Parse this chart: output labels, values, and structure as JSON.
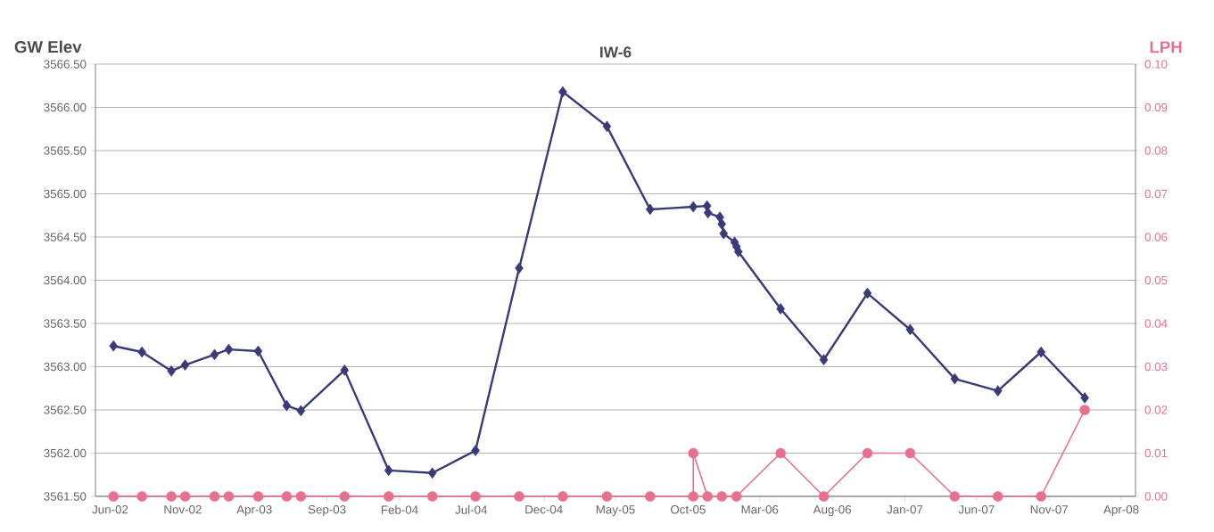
{
  "chart_data": {
    "type": "line",
    "title": "IW-6",
    "ylabel": "GW Elev",
    "y2label": "LPH",
    "xlim": [
      "2002-05-01",
      "2008-05-01"
    ],
    "xticks": [
      {
        "value": "2002-06-01",
        "label": "Jun-02"
      },
      {
        "value": "2002-11-01",
        "label": "Nov-02"
      },
      {
        "value": "2003-04-01",
        "label": "Apr-03"
      },
      {
        "value": "2003-09-01",
        "label": "Sep-03"
      },
      {
        "value": "2004-02-01",
        "label": "Feb-04"
      },
      {
        "value": "2004-07-01",
        "label": "Jul-04"
      },
      {
        "value": "2004-12-01",
        "label": "Dec-04"
      },
      {
        "value": "2005-05-01",
        "label": "May-05"
      },
      {
        "value": "2005-10-01",
        "label": "Oct-05"
      },
      {
        "value": "2006-03-01",
        "label": "Mar-06"
      },
      {
        "value": "2006-08-01",
        "label": "Aug-06"
      },
      {
        "value": "2007-01-01",
        "label": "Jan-07"
      },
      {
        "value": "2007-06-01",
        "label": "Jun-07"
      },
      {
        "value": "2007-11-01",
        "label": "Nov-07"
      },
      {
        "value": "2008-04-01",
        "label": "Apr-08"
      }
    ],
    "ylim": [
      3561.5,
      3566.5
    ],
    "yticks": [
      {
        "value": 3561.5,
        "label": "3561.50"
      },
      {
        "value": 3562.0,
        "label": "3562.00"
      },
      {
        "value": 3562.5,
        "label": "3562.50"
      },
      {
        "value": 3563.0,
        "label": "3563.00"
      },
      {
        "value": 3563.5,
        "label": "3563.50"
      },
      {
        "value": 3564.0,
        "label": "3564.00"
      },
      {
        "value": 3564.5,
        "label": "3564.50"
      },
      {
        "value": 3565.0,
        "label": "3565.00"
      },
      {
        "value": 3565.5,
        "label": "3565.50"
      },
      {
        "value": 3566.0,
        "label": "3566.00"
      },
      {
        "value": 3566.5,
        "label": "3566.50"
      }
    ],
    "y2lim": [
      0,
      0.1
    ],
    "y2ticks": [
      {
        "value": 0,
        "label": "0.00"
      },
      {
        "value": 0.01,
        "label": "0.01"
      },
      {
        "value": 0.02,
        "label": "0.02"
      },
      {
        "value": 0.03,
        "label": "0.03"
      },
      {
        "value": 0.04,
        "label": "0.04"
      },
      {
        "value": 0.05,
        "label": "0.05"
      },
      {
        "value": 0.06,
        "label": "0.06"
      },
      {
        "value": 0.07,
        "label": "0.07"
      },
      {
        "value": 0.08,
        "label": "0.08"
      },
      {
        "value": 0.09,
        "label": "0.09"
      },
      {
        "value": 0.1,
        "label": "0.10"
      }
    ],
    "grid": "y",
    "series": [
      {
        "color": "#3a3a76",
        "marker": "diamond",
        "x": [
          "2002-06-08",
          "2002-08-07",
          "2002-10-08",
          "2002-11-06",
          "2003-01-07",
          "2003-02-06",
          "2003-04-09",
          "2003-06-08",
          "2003-07-08",
          "2003-10-08",
          "2004-01-09",
          "2004-04-10",
          "2004-07-10",
          "2004-10-10",
          "2005-01-10",
          "2005-04-13",
          "2005-07-13",
          "2005-10-12",
          "2005-11-10",
          "2005-11-12",
          "2005-12-07",
          "2005-12-11",
          "2005-12-15",
          "2006-01-07",
          "2006-01-11",
          "2006-01-15",
          "2006-04-14",
          "2006-07-14",
          "2006-10-14",
          "2007-01-12",
          "2007-04-16",
          "2007-07-16",
          "2007-10-15",
          "2008-01-15"
        ],
        "values": [
          3563.24,
          3563.17,
          3562.95,
          3563.02,
          3563.14,
          3563.2,
          3563.18,
          3562.55,
          3562.49,
          3562.96,
          3561.8,
          3561.77,
          3562.03,
          3564.14,
          3566.18,
          3565.78,
          3564.82,
          3564.85,
          3564.86,
          3564.78,
          3564.73,
          3564.65,
          3564.54,
          3564.44,
          3564.39,
          3564.33,
          3563.67,
          3563.08,
          3563.85,
          3563.43,
          3562.86,
          3562.72,
          3563.17,
          3562.64
        ]
      },
      {
        "color": "#e8708f",
        "marker": "circle",
        "axis": "y2",
        "x": [
          "2002-06-08",
          "2002-08-07",
          "2002-10-08",
          "2002-11-06",
          "2003-01-07",
          "2003-02-06",
          "2003-04-09",
          "2003-06-08",
          "2003-07-08",
          "2003-10-08",
          "2004-01-09",
          "2004-04-10",
          "2004-07-10",
          "2004-10-10",
          "2005-01-10",
          "2005-04-13",
          "2005-07-13",
          "2005-10-12",
          "2005-10-12",
          "2005-11-11",
          "2005-12-11",
          "2006-01-11",
          "2006-04-14",
          "2006-07-14",
          "2006-10-14",
          "2007-01-12",
          "2007-04-16",
          "2007-07-16",
          "2007-10-15",
          "2008-01-15"
        ],
        "values": [
          0,
          0,
          0,
          0,
          0,
          0,
          0,
          0,
          0,
          0,
          0,
          0,
          0,
          0,
          0,
          0,
          0,
          0,
          0.01,
          0,
          0,
          0,
          0.01,
          0,
          0.01,
          0.01,
          0,
          0,
          0,
          0.02
        ]
      }
    ]
  }
}
